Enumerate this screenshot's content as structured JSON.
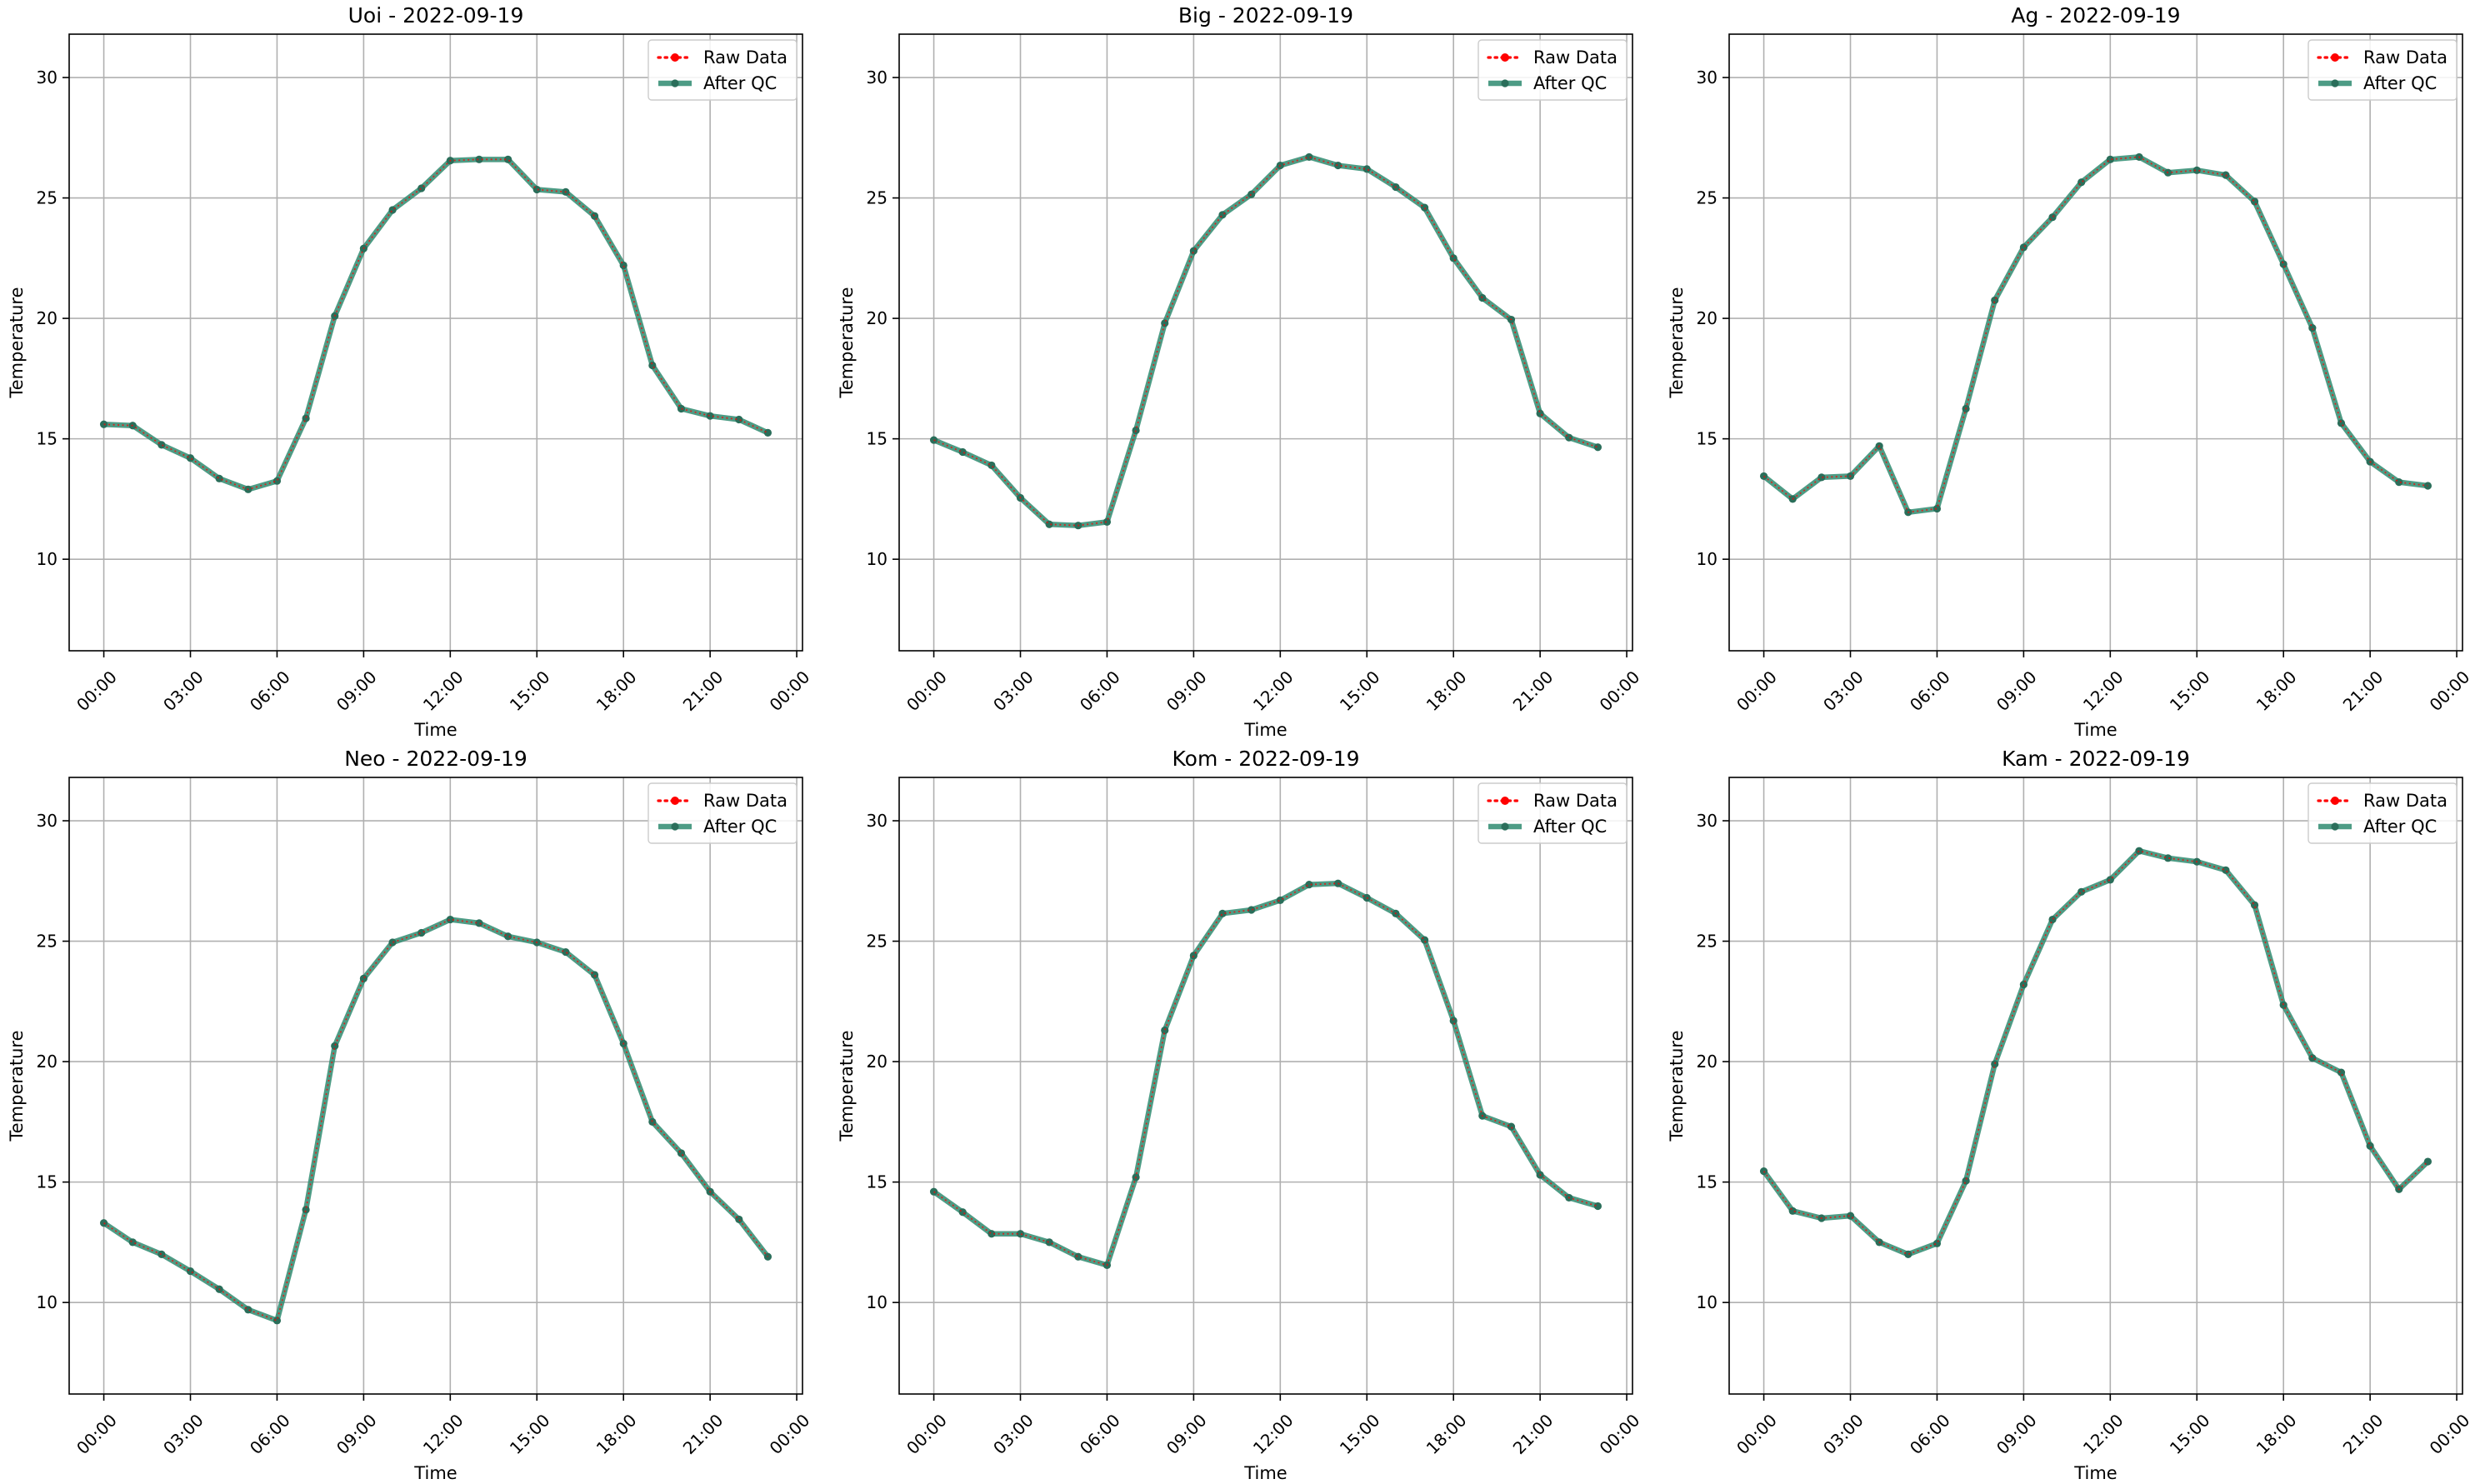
{
  "colors": {
    "raw": "#ff0000",
    "qc": "#2e8b70",
    "qc_marker": "#2a6e5a",
    "grid": "#b0b0b0"
  },
  "chart_data": [
    {
      "type": "line",
      "title": "Uoi - 2022-09-19",
      "xlabel": "Time",
      "ylabel": "Temperature",
      "x_ticks": [
        "00:00",
        "03:00",
        "06:00",
        "09:00",
        "12:00",
        "15:00",
        "18:00",
        "21:00",
        "00:00"
      ],
      "y_ticks": [
        10,
        15,
        20,
        25,
        30
      ],
      "xlim": [
        -1.2,
        24.2
      ],
      "ylim": [
        6.2,
        31.8
      ],
      "grid": true,
      "legend_position": "top-right",
      "x_hours": [
        0,
        1,
        2,
        3,
        4,
        5,
        6,
        7,
        8,
        9,
        10,
        11,
        12,
        13,
        14,
        15,
        16,
        17,
        18,
        19,
        20,
        21,
        22,
        23
      ],
      "series": [
        {
          "name": "Raw Data",
          "style": "dotted-red",
          "values": [
            15.6,
            15.55,
            14.75,
            14.2,
            13.35,
            12.9,
            13.25,
            15.85,
            20.1,
            22.9,
            24.5,
            25.4,
            26.55,
            26.6,
            26.6,
            25.35,
            25.25,
            24.25,
            22.2,
            18.05,
            16.25,
            15.95,
            15.8,
            15.25
          ]
        },
        {
          "name": "After QC",
          "style": "solid-green",
          "values": [
            15.6,
            15.55,
            14.75,
            14.2,
            13.35,
            12.9,
            13.25,
            15.85,
            20.1,
            22.9,
            24.5,
            25.4,
            26.55,
            26.6,
            26.6,
            25.35,
            25.25,
            24.25,
            22.2,
            18.05,
            16.25,
            15.95,
            15.8,
            15.25
          ]
        }
      ]
    },
    {
      "type": "line",
      "title": "Big - 2022-09-19",
      "xlabel": "Time",
      "ylabel": "Temperature",
      "x_ticks": [
        "00:00",
        "03:00",
        "06:00",
        "09:00",
        "12:00",
        "15:00",
        "18:00",
        "21:00",
        "00:00"
      ],
      "y_ticks": [
        10,
        15,
        20,
        25,
        30
      ],
      "xlim": [
        -1.2,
        24.2
      ],
      "ylim": [
        6.2,
        31.8
      ],
      "grid": true,
      "legend_position": "top-right",
      "x_hours": [
        0,
        1,
        2,
        3,
        4,
        5,
        6,
        7,
        8,
        9,
        10,
        11,
        12,
        13,
        14,
        15,
        16,
        17,
        18,
        19,
        20,
        21,
        22,
        23
      ],
      "series": [
        {
          "name": "Raw Data",
          "style": "dotted-red",
          "values": [
            14.95,
            14.45,
            13.9,
            12.55,
            11.45,
            11.4,
            11.55,
            15.35,
            19.8,
            22.8,
            24.3,
            25.15,
            26.35,
            26.7,
            26.35,
            26.2,
            25.45,
            24.6,
            22.5,
            20.85,
            19.95,
            16.05,
            15.05,
            14.65
          ]
        },
        {
          "name": "After QC",
          "style": "solid-green",
          "values": [
            14.95,
            14.45,
            13.9,
            12.55,
            11.45,
            11.4,
            11.55,
            15.35,
            19.8,
            22.8,
            24.3,
            25.15,
            26.35,
            26.7,
            26.35,
            26.2,
            25.45,
            24.6,
            22.5,
            20.85,
            19.95,
            16.05,
            15.05,
            14.65
          ]
        }
      ]
    },
    {
      "type": "line",
      "title": "Ag - 2022-09-19",
      "xlabel": "Time",
      "ylabel": "Temperature",
      "x_ticks": [
        "00:00",
        "03:00",
        "06:00",
        "09:00",
        "12:00",
        "15:00",
        "18:00",
        "21:00",
        "00:00"
      ],
      "y_ticks": [
        10,
        15,
        20,
        25,
        30
      ],
      "xlim": [
        -1.2,
        24.2
      ],
      "ylim": [
        6.2,
        31.8
      ],
      "grid": true,
      "legend_position": "top-right",
      "x_hours": [
        0,
        1,
        2,
        3,
        4,
        5,
        6,
        7,
        8,
        9,
        10,
        11,
        12,
        13,
        14,
        15,
        16,
        17,
        18,
        19,
        20,
        21,
        22,
        23
      ],
      "series": [
        {
          "name": "Raw Data",
          "style": "dotted-red",
          "values": [
            13.45,
            12.5,
            13.4,
            13.45,
            14.7,
            11.95,
            12.1,
            16.25,
            20.75,
            22.95,
            24.2,
            25.65,
            26.6,
            26.7,
            26.05,
            26.15,
            25.95,
            24.85,
            22.25,
            19.6,
            15.65,
            14.05,
            13.2,
            13.05
          ]
        },
        {
          "name": "After QC",
          "style": "solid-green",
          "values": [
            13.45,
            12.5,
            13.4,
            13.45,
            14.7,
            11.95,
            12.1,
            16.25,
            20.75,
            22.95,
            24.2,
            25.65,
            26.6,
            26.7,
            26.05,
            26.15,
            25.95,
            24.85,
            22.25,
            19.6,
            15.65,
            14.05,
            13.2,
            13.05
          ]
        }
      ]
    },
    {
      "type": "line",
      "title": "Neo - 2022-09-19",
      "xlabel": "Time",
      "ylabel": "Temperature",
      "x_ticks": [
        "00:00",
        "03:00",
        "06:00",
        "09:00",
        "12:00",
        "15:00",
        "18:00",
        "21:00",
        "00:00"
      ],
      "y_ticks": [
        10,
        15,
        20,
        25,
        30
      ],
      "xlim": [
        -1.2,
        24.2
      ],
      "ylim": [
        6.2,
        31.8
      ],
      "grid": true,
      "legend_position": "top-right",
      "x_hours": [
        0,
        1,
        2,
        3,
        4,
        5,
        6,
        7,
        8,
        9,
        10,
        11,
        12,
        13,
        14,
        15,
        16,
        17,
        18,
        19,
        20,
        21,
        22,
        23
      ],
      "series": [
        {
          "name": "Raw Data",
          "style": "dotted-red",
          "values": [
            13.3,
            12.5,
            12.0,
            11.3,
            10.55,
            9.7,
            9.25,
            13.85,
            20.65,
            23.45,
            24.95,
            25.35,
            25.9,
            25.75,
            25.2,
            24.95,
            24.55,
            23.6,
            20.75,
            17.5,
            16.2,
            14.6,
            13.45,
            11.9
          ]
        },
        {
          "name": "After QC",
          "style": "solid-green",
          "values": [
            13.3,
            12.5,
            12.0,
            11.3,
            10.55,
            9.7,
            9.25,
            13.85,
            20.65,
            23.45,
            24.95,
            25.35,
            25.9,
            25.75,
            25.2,
            24.95,
            24.55,
            23.6,
            20.75,
            17.5,
            16.2,
            14.6,
            13.45,
            11.9
          ]
        }
      ]
    },
    {
      "type": "line",
      "title": "Kom - 2022-09-19",
      "xlabel": "Time",
      "ylabel": "Temperature",
      "x_ticks": [
        "00:00",
        "03:00",
        "06:00",
        "09:00",
        "12:00",
        "15:00",
        "18:00",
        "21:00",
        "00:00"
      ],
      "y_ticks": [
        10,
        15,
        20,
        25,
        30
      ],
      "xlim": [
        -1.2,
        24.2
      ],
      "ylim": [
        6.2,
        31.8
      ],
      "grid": true,
      "legend_position": "top-right",
      "x_hours": [
        0,
        1,
        2,
        3,
        4,
        5,
        6,
        7,
        8,
        9,
        10,
        11,
        12,
        13,
        14,
        15,
        16,
        17,
        18,
        19,
        20,
        21,
        22,
        23
      ],
      "series": [
        {
          "name": "Raw Data",
          "style": "dotted-red",
          "values": [
            14.6,
            13.75,
            12.85,
            12.85,
            12.5,
            11.9,
            11.55,
            15.2,
            21.3,
            24.4,
            26.15,
            26.3,
            26.7,
            27.35,
            27.4,
            26.8,
            26.15,
            25.05,
            21.7,
            17.75,
            17.3,
            15.3,
            14.35,
            14.0
          ]
        },
        {
          "name": "After QC",
          "style": "solid-green",
          "values": [
            14.6,
            13.75,
            12.85,
            12.85,
            12.5,
            11.9,
            11.55,
            15.2,
            21.3,
            24.4,
            26.15,
            26.3,
            26.7,
            27.35,
            27.4,
            26.8,
            26.15,
            25.05,
            21.7,
            17.75,
            17.3,
            15.3,
            14.35,
            14.0
          ]
        }
      ]
    },
    {
      "type": "line",
      "title": "Kam - 2022-09-19",
      "xlabel": "Time",
      "ylabel": "Temperature",
      "x_ticks": [
        "00:00",
        "03:00",
        "06:00",
        "09:00",
        "12:00",
        "15:00",
        "18:00",
        "21:00",
        "00:00"
      ],
      "y_ticks": [
        10,
        15,
        20,
        25,
        30
      ],
      "xlim": [
        -1.2,
        24.2
      ],
      "ylim": [
        6.2,
        31.8
      ],
      "grid": true,
      "legend_position": "top-right",
      "x_hours": [
        0,
        1,
        2,
        3,
        4,
        5,
        6,
        7,
        8,
        9,
        10,
        11,
        12,
        13,
        14,
        15,
        16,
        17,
        18,
        19,
        20,
        21,
        22,
        23
      ],
      "series": [
        {
          "name": "Raw Data",
          "style": "dotted-red",
          "values": [
            15.45,
            13.8,
            13.5,
            13.6,
            12.5,
            12.0,
            12.45,
            15.05,
            19.9,
            23.2,
            25.9,
            27.05,
            27.55,
            28.75,
            28.45,
            28.3,
            27.95,
            26.5,
            22.35,
            20.15,
            19.55,
            16.5,
            14.7,
            15.85
          ]
        },
        {
          "name": "After QC",
          "style": "solid-green",
          "values": [
            15.45,
            13.8,
            13.5,
            13.6,
            12.5,
            12.0,
            12.45,
            15.05,
            19.9,
            23.2,
            25.9,
            27.05,
            27.55,
            28.75,
            28.45,
            28.3,
            27.95,
            26.5,
            22.35,
            20.15,
            19.55,
            16.5,
            14.7,
            15.85
          ]
        }
      ]
    }
  ]
}
